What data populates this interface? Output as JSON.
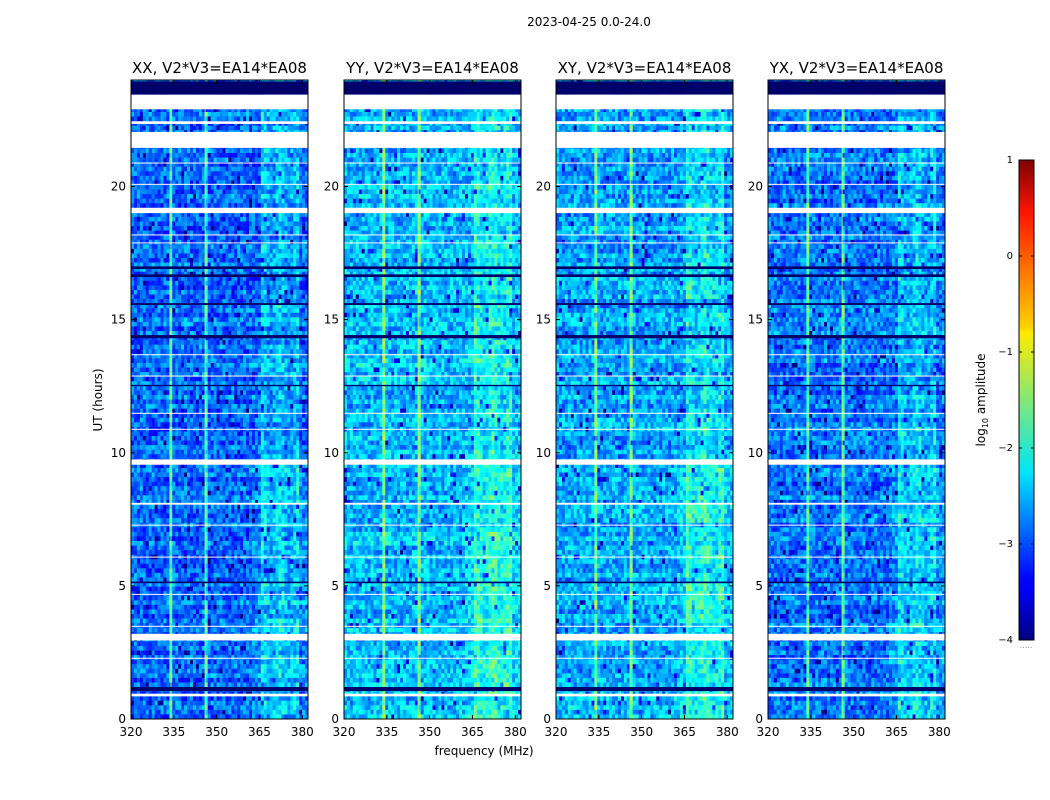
{
  "chart_data": {
    "type": "heatmap",
    "suptitle": "2023-04-25 0.0-24.0",
    "xlabel": "frequency (MHz)",
    "ylabel": "UT (hours)",
    "xlim": [
      320,
      382
    ],
    "ylim": [
      0,
      24
    ],
    "xticks": [
      320,
      335,
      350,
      365,
      380
    ],
    "xtick_labels": [
      "320",
      "335",
      "350",
      "365",
      "380"
    ],
    "yticks": [
      0,
      5,
      10,
      15,
      20
    ],
    "ytick_labels": [
      "0",
      "5",
      "10",
      "15",
      "20"
    ],
    "panels": [
      {
        "title": "XX, V2*V3=EA14*EA08",
        "pol": "XX",
        "level": -2.85
      },
      {
        "title": "YY, V2*V3=EA14*EA08",
        "pol": "YY",
        "level": -2.45
      },
      {
        "title": "XY, V2*V3=EA14*EA08",
        "pol": "XY",
        "level": -2.55
      },
      {
        "title": "YX, V2*V3=EA14*EA08",
        "pol": "YX",
        "level": -2.8
      }
    ],
    "flagged_hours": [
      [
        0.85,
        0.95
      ],
      [
        2.95,
        3.2
      ],
      [
        8.05,
        8.12
      ],
      [
        9.55,
        9.75
      ],
      [
        19.0,
        19.2
      ],
      [
        21.45,
        22.05
      ],
      [
        22.35,
        22.45
      ],
      [
        22.9,
        23.45
      ]
    ],
    "dark_hours": [
      [
        1.05,
        1.2
      ],
      [
        14.3,
        14.42
      ],
      [
        15.55,
        15.62
      ],
      [
        16.6,
        16.7
      ],
      [
        16.9,
        17.0
      ],
      [
        23.45,
        23.95
      ],
      [
        5.1,
        5.16
      ],
      [
        12.5,
        12.55
      ]
    ],
    "strong_channels_mhz": [
      334,
      346
    ],
    "bright_band_mhz": [
      365,
      379
    ],
    "colorbar": {
      "label": "log10 amplitude",
      "range": [
        -4,
        1
      ],
      "ticks": [
        1,
        0,
        -1,
        -2,
        -3,
        -4
      ],
      "tick_labels": [
        "1",
        "0",
        "−1",
        "−2",
        "−3",
        "−4"
      ],
      "colormap": "jet"
    }
  }
}
